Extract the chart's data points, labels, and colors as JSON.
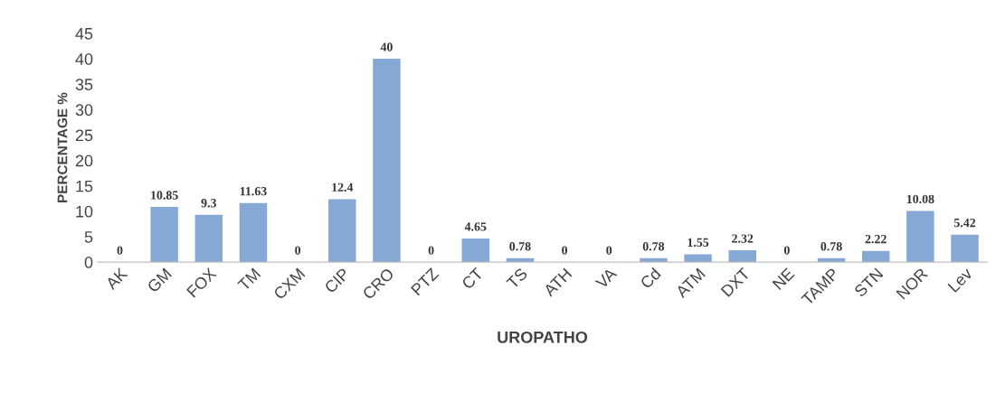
{
  "chart_data": {
    "type": "bar",
    "categories": [
      "AK",
      "GM",
      "FOX",
      "TM",
      "CXM",
      "CIP",
      "CRO",
      "PTZ",
      "CT",
      "TS",
      "ATH",
      "VA",
      "Cd",
      "ATM",
      "DXT",
      "NE",
      "TAMP",
      "STN",
      "NOR",
      "Lev"
    ],
    "values": [
      0,
      10.85,
      9.3,
      11.63,
      0,
      12.4,
      40,
      0,
      4.65,
      0.78,
      0,
      0,
      0.78,
      1.55,
      2.32,
      0,
      0.78,
      2.22,
      10.08,
      5.42
    ],
    "color": "#86a8d4",
    "xlabel": "UROPATHO",
    "ylabel": "PERCENTAGE %",
    "ylim": [
      0,
      45
    ],
    "yticks": [
      0,
      5,
      10,
      15,
      20,
      25,
      30,
      35,
      40,
      45
    ],
    "data_labels": true,
    "grid": false,
    "legend": false
  }
}
